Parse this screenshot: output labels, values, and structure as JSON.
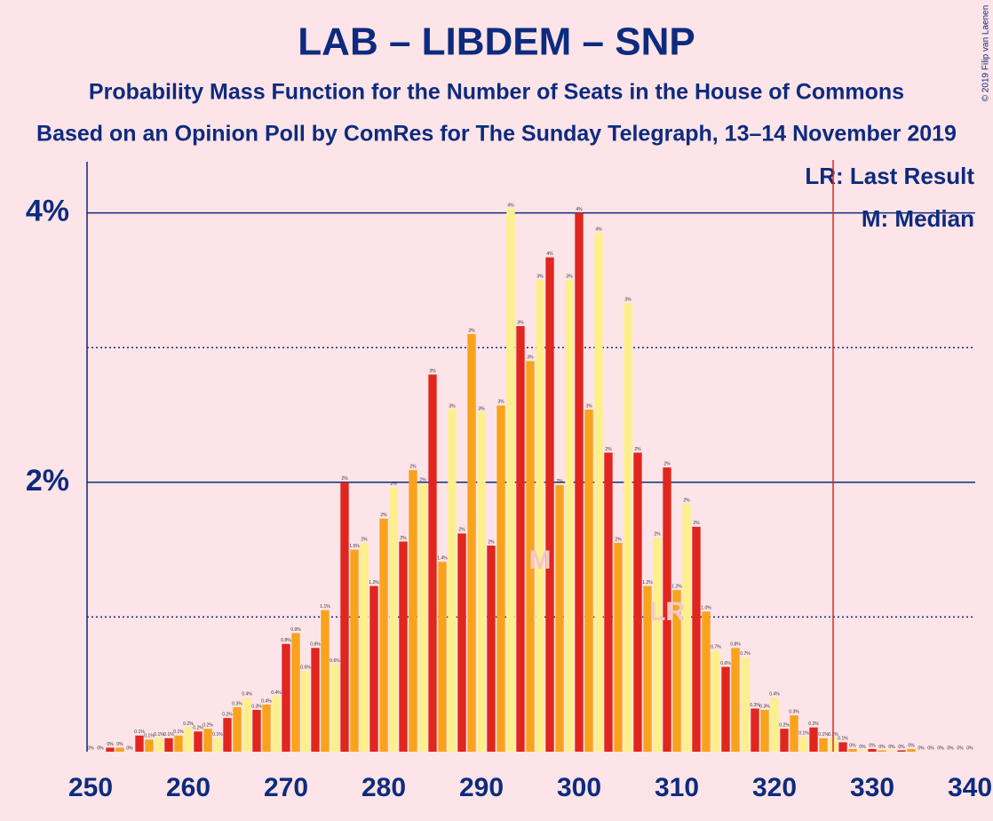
{
  "chart_data": {
    "type": "bar",
    "title": "LAB – LIBDEM – SNP",
    "subtitle": "Probability Mass Function for the Number of Seats in the House of Commons",
    "subtitle2": "Based on an Opinion Poll by ComRes for The Sunday Telegraph, 13–14 November 2019",
    "copyright": "© 2019 Filip van Laenen",
    "legend": [
      "LR: Last Result",
      "M: Median"
    ],
    "median_label": "M",
    "last_result_label": "LR",
    "median": 296,
    "last_result": 309,
    "majority": 326,
    "colors": [
      "#e0261e",
      "#f9a21c",
      "#fdf08c"
    ],
    "x": [
      250,
      251,
      252,
      253,
      254,
      255,
      256,
      257,
      258,
      259,
      260,
      261,
      262,
      263,
      264,
      265,
      266,
      267,
      268,
      269,
      270,
      271,
      272,
      273,
      274,
      275,
      276,
      277,
      278,
      279,
      280,
      281,
      282,
      283,
      284,
      285,
      286,
      287,
      288,
      289,
      290,
      291,
      292,
      293,
      294,
      295,
      296,
      297,
      298,
      299,
      300,
      301,
      302,
      303,
      304,
      305,
      306,
      307,
      308,
      309,
      310,
      311,
      312,
      313,
      314,
      315,
      316,
      317,
      318,
      319,
      320,
      321,
      322,
      323,
      324,
      325,
      326,
      327,
      328,
      329,
      330,
      331,
      332,
      333,
      334,
      335,
      336,
      337,
      338,
      339,
      340
    ],
    "values": [
      0,
      0,
      0.03,
      0.03,
      0,
      0.12,
      0.09,
      0.1,
      0.1,
      0.12,
      0.18,
      0.15,
      0.17,
      0.1,
      0.25,
      0.33,
      0.4,
      0.31,
      0.35,
      0.41,
      0.8,
      0.88,
      0.6,
      0.77,
      1.05,
      0.65,
      2.0,
      1.5,
      1.55,
      1.23,
      1.73,
      1.96,
      1.56,
      2.09,
      1.99,
      2.8,
      1.41,
      2.54,
      1.62,
      3.1,
      2.52,
      1.53,
      2.57,
      4.03,
      3.16,
      2.9,
      3.5,
      3.67,
      1.98,
      3.5,
      4.0,
      2.54,
      3.85,
      2.22,
      1.55,
      3.33,
      2.22,
      1.23,
      1.59,
      2.11,
      1.2,
      1.84,
      1.67,
      1.04,
      0.75,
      0.63,
      0.77,
      0.7,
      0.32,
      0.31,
      0.4,
      0.17,
      0.27,
      0.11,
      0.18,
      0.1,
      0.1,
      0.07,
      0.02,
      0.01,
      0.02,
      0.01,
      0.01,
      0.01,
      0.02,
      0,
      0,
      0,
      0,
      0,
      0
    ],
    "value_labels": [
      "0%",
      "0%",
      "0%",
      "0%",
      "0%",
      "0.1%",
      "0.1%",
      "0.1%",
      "0.1%",
      "0.1%",
      "0.2%",
      "0.2%",
      "0.2%",
      "0.1%",
      "0.2%",
      "0.3%",
      "0.4%",
      "0.3%",
      "0.4%",
      "0.4%",
      "0.8%",
      "0.9%",
      "0.6%",
      "0.8%",
      "1.1%",
      "0.6%",
      "2%",
      "1.5%",
      "2%",
      "1.2%",
      "2%",
      "2%",
      "2%",
      "2%",
      "2%",
      "3%",
      "1.4%",
      "3%",
      "2%",
      "3%",
      "3%",
      "2%",
      "3%",
      "4%",
      "3%",
      "3%",
      "3%",
      "4%",
      "2%",
      "3%",
      "4%",
      "3%",
      "4%",
      "2%",
      "2%",
      "3%",
      "2%",
      "1.2%",
      "2%",
      "2%",
      "1.2%",
      "2%",
      "2%",
      "1.0%",
      "0.7%",
      "0.6%",
      "0.8%",
      "0.7%",
      "0.3%",
      "0.3%",
      "0.4%",
      "0.2%",
      "0.3%",
      "0.1%",
      "0.2%",
      "0.1%",
      "0.1%",
      "0.1%",
      "0%",
      "0%",
      "0%",
      "0%",
      "0%",
      "0%",
      "0%",
      "0%",
      "0%",
      "0%",
      "0%",
      "0%",
      "0%"
    ],
    "xlim": [
      250,
      340
    ],
    "xticks": [
      250,
      260,
      270,
      280,
      290,
      300,
      310,
      320,
      330,
      340
    ],
    "ylim": [
      0,
      4.38
    ],
    "yticks": [
      {
        "value": 2,
        "label": "2%"
      },
      {
        "value": 4,
        "label": "4%"
      }
    ],
    "minor_yticks": [
      1,
      3
    ],
    "grid": true
  }
}
